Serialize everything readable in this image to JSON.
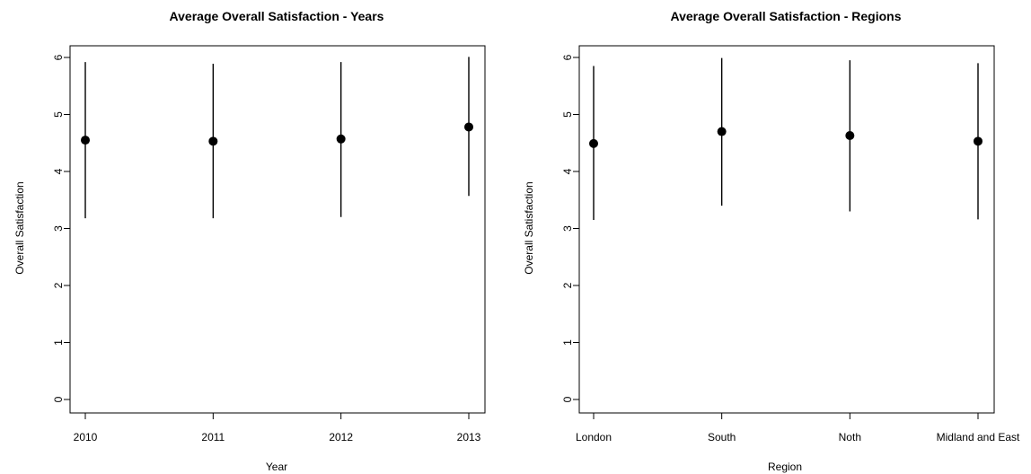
{
  "chart_data": [
    {
      "type": "scatter",
      "title": "Average Overall Satisfaction - Years",
      "xlabel": "Year",
      "ylabel": "Overall Satisfaction",
      "categories": [
        "2010",
        "2011",
        "2012",
        "2013"
      ],
      "yticks": [
        "0",
        "1",
        "2",
        "3",
        "4",
        "5",
        "6"
      ],
      "ylim": [
        0,
        6
      ],
      "grid": false,
      "series": [
        {
          "values": [
            4.55,
            4.53,
            4.57,
            4.78
          ],
          "lower": [
            3.18,
            3.18,
            3.2,
            3.57
          ],
          "upper": [
            5.92,
            5.89,
            5.92,
            6.01
          ]
        }
      ]
    },
    {
      "type": "scatter",
      "title": "Average Overall Satisfaction - Regions",
      "xlabel": "Region",
      "ylabel": "Overall Satisfaction",
      "categories": [
        "London",
        "South",
        "Noth",
        "Midland and East"
      ],
      "yticks": [
        "0",
        "1",
        "2",
        "3",
        "4",
        "5",
        "6"
      ],
      "ylim": [
        0,
        6
      ],
      "grid": false,
      "series": [
        {
          "values": [
            4.49,
            4.7,
            4.63,
            4.53
          ],
          "lower": [
            3.15,
            3.4,
            3.3,
            3.16
          ],
          "upper": [
            5.85,
            5.99,
            5.95,
            5.9
          ]
        }
      ]
    }
  ]
}
